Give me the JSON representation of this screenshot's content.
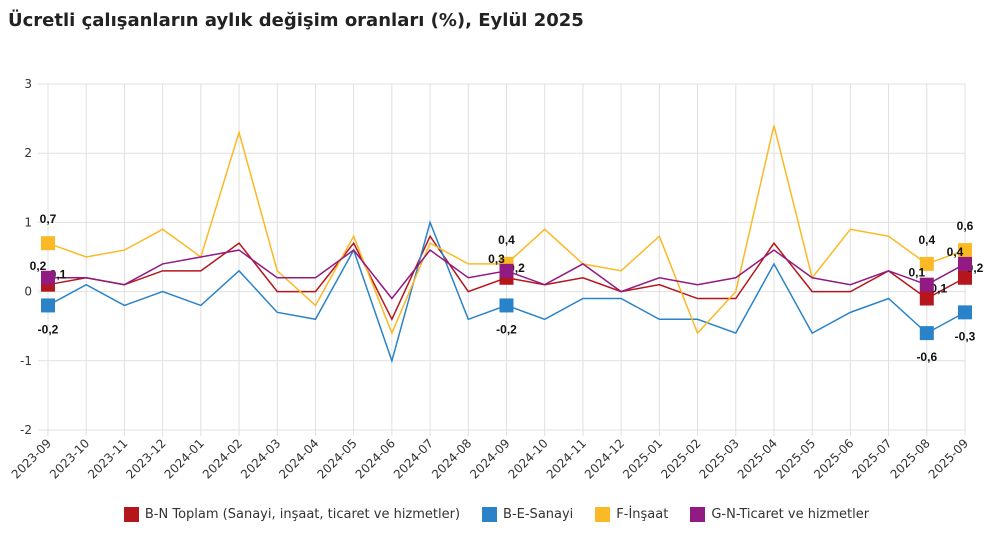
{
  "chart_data": {
    "type": "line",
    "title": "Ücretli çalışanların aylık değişim oranları (%), Eylül 2025",
    "xlabel": "",
    "ylabel": "",
    "ylim": [
      -2,
      3
    ],
    "yticks": [
      "-2",
      "-1",
      "0",
      "1",
      "2",
      "3"
    ],
    "grid": true,
    "legend_position": "bottom",
    "x": [
      "2023-09",
      "2023-10",
      "2023-11",
      "2023-12",
      "2024-01",
      "2024-02",
      "2024-03",
      "2024-04",
      "2024-05",
      "2024-06",
      "2024-07",
      "2024-08",
      "2024-09",
      "2024-10",
      "2024-11",
      "2024-12",
      "2025-01",
      "2025-02",
      "2025-03",
      "2025-04",
      "2025-05",
      "2025-06",
      "2025-07",
      "2025-08",
      "2025-09"
    ],
    "labeled_points": [
      "2023-09",
      "2024-09",
      "2025-08",
      "2025-09"
    ],
    "series": [
      {
        "name": "B-N Toplam (Sanayi, inşaat, ticaret ve hizmetler)",
        "color": "#b5161b",
        "values": [
          0.1,
          0.2,
          0.1,
          0.3,
          0.3,
          0.7,
          0,
          0,
          0.7,
          -0.4,
          0.8,
          0,
          0.2,
          0.1,
          0.2,
          0,
          0.1,
          -0.1,
          -0.1,
          0.7,
          0,
          0,
          0.3,
          -0.1,
          0.2
        ]
      },
      {
        "name": "B-E-Sanayi",
        "color": "#2a83c9",
        "values": [
          -0.2,
          0.1,
          -0.2,
          0,
          -0.2,
          0.3,
          -0.3,
          -0.4,
          0.6,
          -1.0,
          1.0,
          -0.4,
          -0.2,
          -0.4,
          -0.1,
          -0.1,
          -0.4,
          -0.4,
          -0.6,
          0.4,
          -0.6,
          -0.3,
          -0.1,
          -0.6,
          -0.3
        ]
      },
      {
        "name": "F-İnşaat",
        "color": "#fbb925",
        "values": [
          0.7,
          0.5,
          0.6,
          0.9,
          0.5,
          2.3,
          0.3,
          -0.2,
          0.8,
          -0.6,
          0.7,
          0.4,
          0.4,
          0.9,
          0.4,
          0.3,
          0.8,
          -0.6,
          0,
          2.4,
          0.2,
          0.9,
          0.8,
          0.4,
          0.6
        ]
      },
      {
        "name": "G-N-Ticaret ve hizmetler",
        "color": "#921a83",
        "values": [
          0.2,
          0.2,
          0.1,
          0.4,
          0.5,
          0.6,
          0.2,
          0.2,
          0.6,
          -0.1,
          0.6,
          0.2,
          0.3,
          0.1,
          0.4,
          0,
          0.2,
          0.1,
          0.2,
          0.6,
          0.2,
          0.1,
          0.3,
          0.1,
          0.4
        ]
      }
    ]
  }
}
